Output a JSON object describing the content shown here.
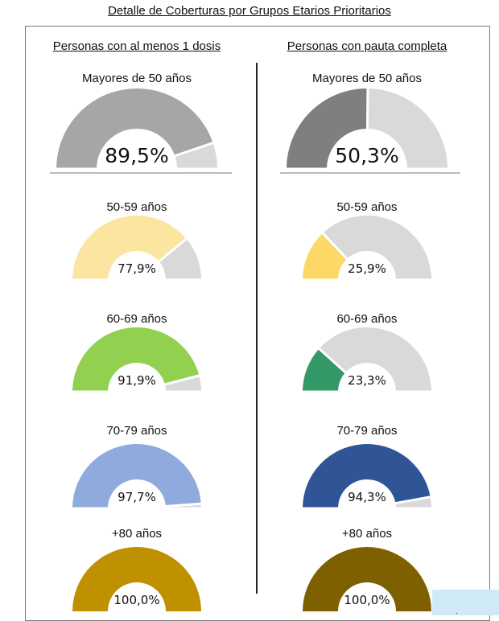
{
  "title": "Detalle de Coberturas por Grupos Etarios Prioritarios",
  "columns": {
    "left": {
      "heading": "Personas con al menos 1 dosis"
    },
    "right": {
      "heading": "Personas con pauta completa"
    }
  },
  "footer_mark": "·",
  "chart_data": {
    "type": "gauge",
    "title": "Detalle de Coberturas por Grupos Etarios Prioritarios",
    "unit": "%",
    "range": [
      0,
      100
    ],
    "remainder_color": "#d9d9d9",
    "series": [
      {
        "name": "Personas con al menos 1 dosis",
        "groups": [
          {
            "label": "Mayores de 50 años",
            "value": 89.5,
            "display": "89,5%",
            "color": "#a6a6a6"
          },
          {
            "label": "50-59 años",
            "value": 77.9,
            "display": "77,9%",
            "color": "#fbe5a0"
          },
          {
            "label": "60-69 años",
            "value": 91.9,
            "display": "91,9%",
            "color": "#92d050"
          },
          {
            "label": "70-79 años",
            "value": 97.7,
            "display": "97,7%",
            "color": "#8faadc"
          },
          {
            "label": "+80 años",
            "value": 100.0,
            "display": "100,0%",
            "color": "#bf9000"
          }
        ]
      },
      {
        "name": "Personas con pauta completa",
        "groups": [
          {
            "label": "Mayores de 50 años",
            "value": 50.3,
            "display": "50,3%",
            "color": "#7f7f7f"
          },
          {
            "label": "50-59 años",
            "value": 25.9,
            "display": "25,9%",
            "color": "#fcd966"
          },
          {
            "label": "60-69 años",
            "value": 23.3,
            "display": "23,3%",
            "color": "#339966"
          },
          {
            "label": "70-79 años",
            "value": 94.3,
            "display": "94,3%",
            "color": "#2f5597"
          },
          {
            "label": "+80 años",
            "value": 100.0,
            "display": "100,0%",
            "color": "#7f6000"
          }
        ]
      }
    ]
  }
}
